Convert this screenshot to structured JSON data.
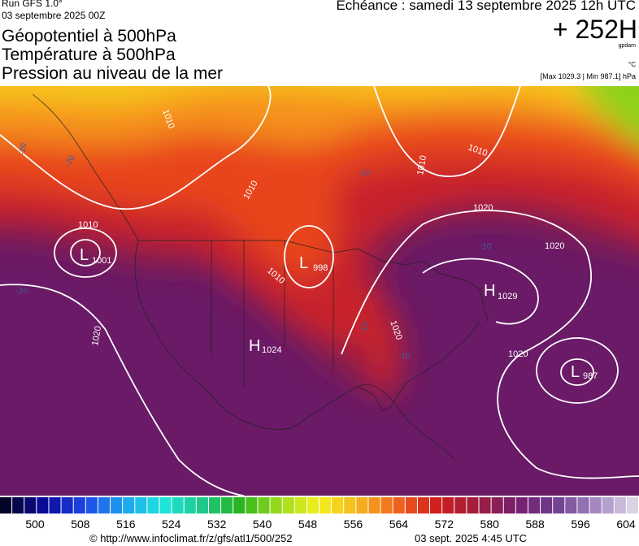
{
  "header": {
    "run": "Run GFS 1.0°",
    "date": "03 septembre 2025 00Z",
    "titles": [
      "Géopotentiel à 500hPa",
      "Température à 500hPa",
      "Pression au niveau de la mer"
    ],
    "echeance": "Echéance : samedi 13 septembre 2025 12h UTC",
    "lead": "+ 252H",
    "unit_geo": "gpdam",
    "unit_temp": "°C",
    "maxmin": "[Max 1029.3 | Min 987.1] hPa"
  },
  "map": {
    "centers": [
      {
        "letter": "L",
        "value": "1001"
      },
      {
        "letter": "L",
        "value": "998"
      },
      {
        "letter": "H",
        "value": "1024"
      },
      {
        "letter": "H",
        "value": "1029"
      },
      {
        "letter": "L",
        "value": "987"
      }
    ],
    "isobar_labels": [
      "1010",
      "1010",
      "1010",
      "1010",
      "1010",
      "1010",
      "1020",
      "1020",
      "1020",
      "1020",
      "1020"
    ],
    "temp_labels": [
      "-20",
      "-20",
      "-10",
      "-10",
      "-10",
      "-10",
      "-10"
    ]
  },
  "colorbar": {
    "labels": [
      "500",
      "508",
      "516",
      "524",
      "532",
      "540",
      "548",
      "556",
      "564",
      "572",
      "580",
      "588",
      "596",
      "604"
    ]
  },
  "footer": {
    "url": "© http://www.infoclimat.fr/z/gfs/atl1/500/252",
    "time": "03 sept. 2025  4:45 UTC"
  }
}
